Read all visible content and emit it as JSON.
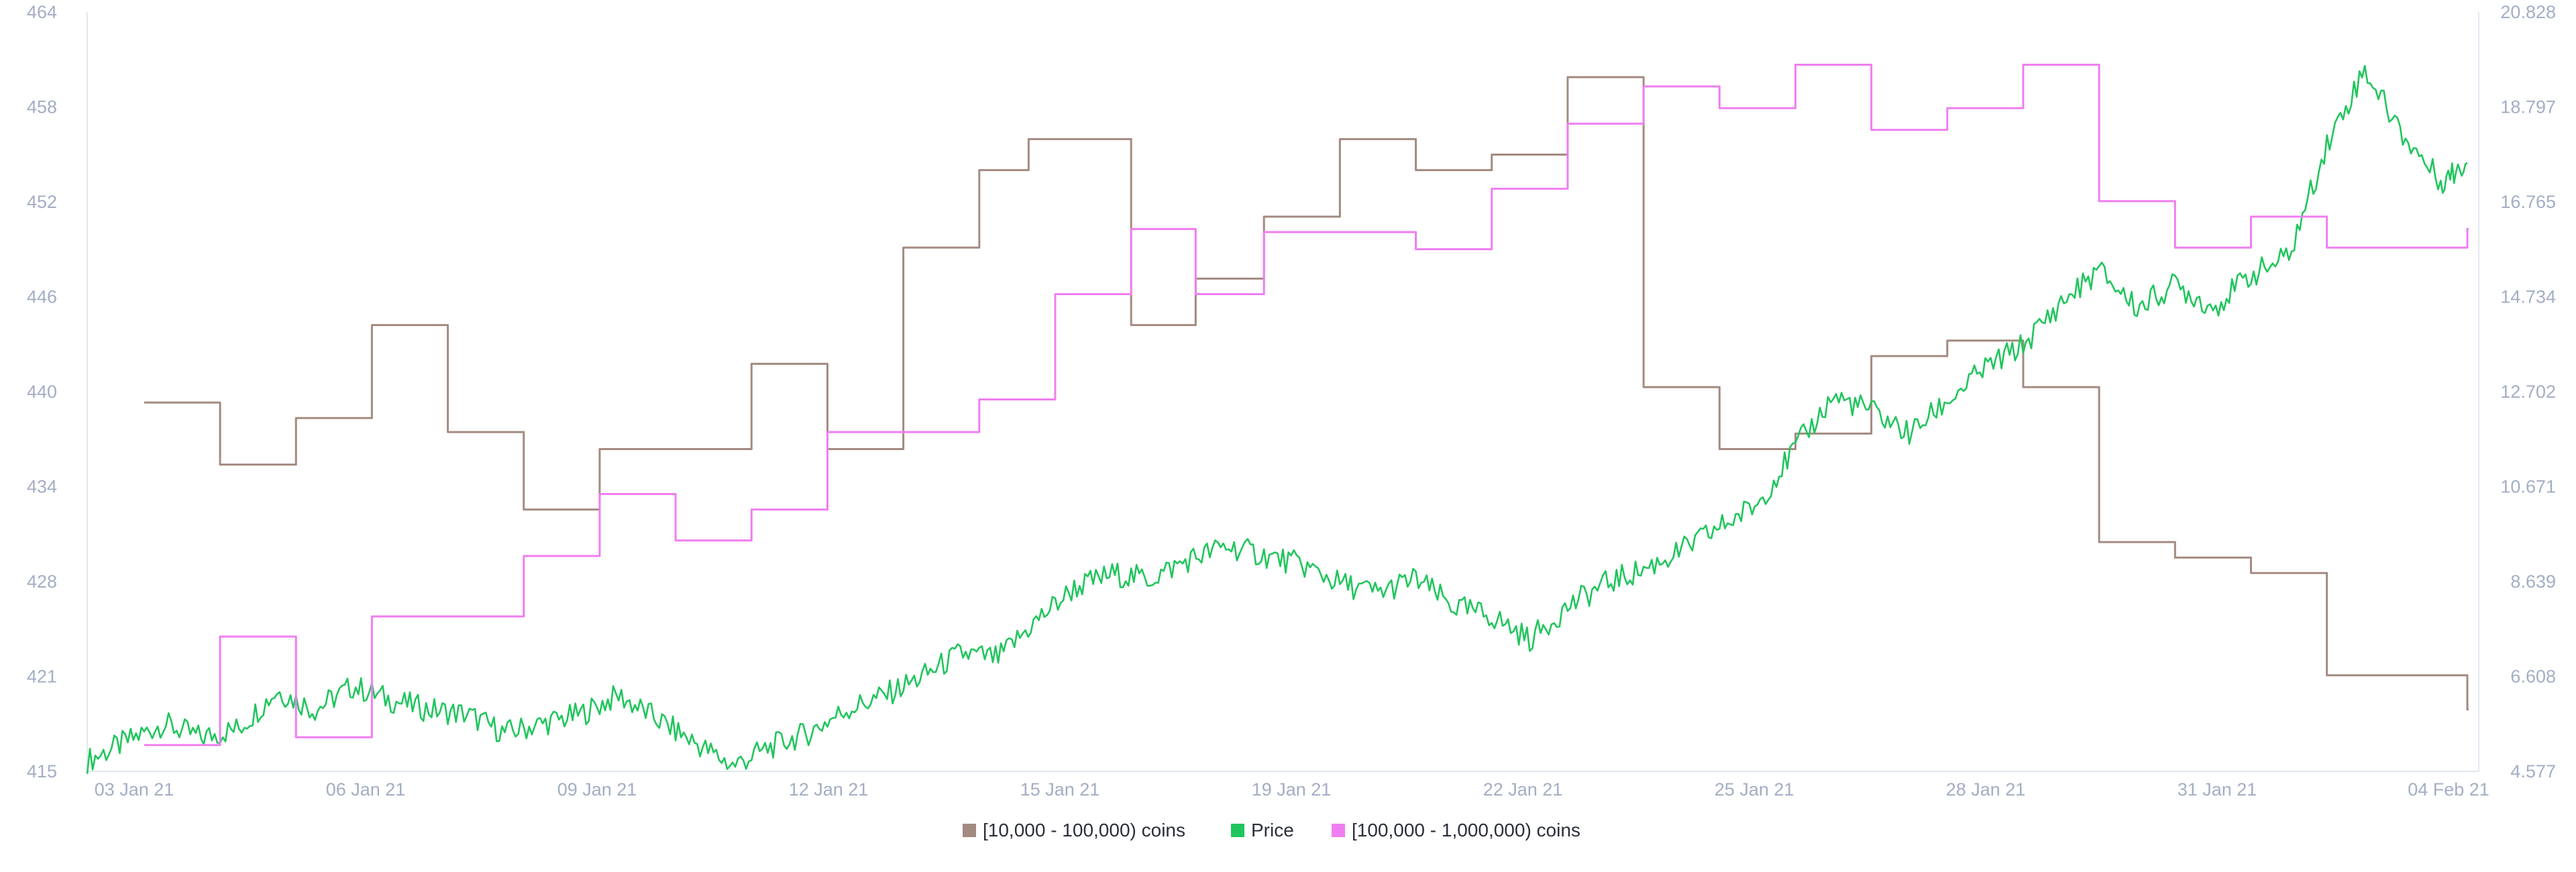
{
  "chart_data": {
    "type": "line",
    "title": "",
    "xlabel": "",
    "ylabel": "",
    "y2label": "",
    "x_tick_labels": [
      "03 Jan 21",
      "06 Jan 21",
      "09 Jan 21",
      "12 Jan 21",
      "15 Jan 21",
      "19 Jan 21",
      "22 Jan 21",
      "25 Jan 21",
      "28 Jan 21",
      "31 Jan 21",
      "04 Feb 21"
    ],
    "y_left_ticks": [
      "415",
      "421",
      "428",
      "434",
      "440",
      "446",
      "452",
      "458",
      "464"
    ],
    "y_right_ticks": [
      "4.577",
      "6.608",
      "8.639",
      "10.671",
      "12.702",
      "14.734",
      "16.765",
      "18.797",
      "20.828"
    ],
    "xlim": [
      0,
      31.5
    ],
    "y_left_lim": [
      415,
      464
    ],
    "y_right_lim": [
      4.577,
      20.828
    ],
    "grid": false,
    "legend_position": "bottom-center",
    "series": [
      {
        "name": "[10,000 - 100,000) coins",
        "axis": "left",
        "color": "#a38a80",
        "step": true,
        "x": [
          0.75,
          1.75,
          2.75,
          3.75,
          4.75,
          5.75,
          6.75,
          7.75,
          8.75,
          9.75,
          10.75,
          11.75,
          12.4,
          13.75,
          14.6,
          15.5,
          16.5,
          17.5,
          18.5,
          19.5,
          20.5,
          21.5,
          22.5,
          23.5,
          24.5,
          25.5,
          26.5,
          27.5,
          28.5,
          29.5,
          30.5,
          31.35
        ],
        "values": [
          438.8,
          434.8,
          437.8,
          443.8,
          436.9,
          431.9,
          435.8,
          435.8,
          441.3,
          435.8,
          448.8,
          453.8,
          455.8,
          443.8,
          446.8,
          450.8,
          455.8,
          453.8,
          454.8,
          459.8,
          439.8,
          435.8,
          436.8,
          441.8,
          442.8,
          439.8,
          429.8,
          428.8,
          427.8,
          421.2,
          421.2,
          419.0
        ]
      },
      {
        "name": "Price",
        "axis": "right",
        "color": "#21c55d",
        "step": false,
        "x": [
          0.0,
          0.5,
          1.0,
          1.5,
          2.0,
          2.5,
          3.0,
          3.5,
          4.0,
          4.5,
          5.0,
          5.5,
          6.0,
          6.5,
          7.0,
          7.5,
          8.0,
          8.5,
          9.0,
          9.5,
          10.0,
          10.5,
          11.0,
          11.5,
          12.0,
          12.5,
          13.0,
          13.5,
          14.0,
          14.5,
          15.0,
          15.5,
          16.0,
          16.5,
          17.0,
          17.5,
          18.0,
          18.5,
          19.0,
          19.5,
          20.0,
          20.5,
          21.0,
          21.5,
          22.0,
          22.5,
          23.0,
          23.5,
          24.0,
          24.5,
          25.0,
          25.5,
          26.0,
          26.5,
          27.0,
          27.5,
          28.0,
          28.5,
          29.0,
          29.5,
          30.0,
          30.5,
          31.0,
          31.35
        ],
        "values": [
          4.8,
          5.2,
          5.6,
          5.3,
          5.5,
          6.3,
          5.9,
          6.4,
          6.1,
          5.9,
          5.8,
          5.4,
          5.6,
          5.8,
          6.2,
          5.7,
          5.2,
          4.7,
          5.1,
          5.4,
          5.9,
          6.2,
          6.6,
          7.1,
          7.0,
          7.8,
          8.5,
          8.8,
          8.7,
          9.1,
          9.4,
          9.2,
          9.0,
          8.6,
          8.4,
          8.7,
          8.1,
          7.9,
          7.4,
          8.1,
          8.6,
          8.9,
          9.3,
          9.8,
          10.3,
          11.5,
          12.6,
          12.3,
          11.8,
          12.5,
          13.2,
          13.7,
          14.6,
          15.3,
          14.5,
          15.0,
          14.5,
          15.2,
          15.6,
          18.0,
          19.6,
          18.2,
          17.2,
          17.6
        ]
      },
      {
        "name": "[100,000  - 1,000,000) coins",
        "axis": "left",
        "color": "#f07ef0",
        "step": true,
        "x": [
          0.75,
          1.75,
          2.75,
          3.75,
          4.75,
          5.75,
          6.75,
          7.75,
          8.75,
          9.75,
          10.75,
          11.75,
          12.75,
          13.75,
          14.6,
          15.5,
          16.5,
          17.5,
          18.5,
          19.5,
          20.5,
          21.5,
          22.5,
          23.5,
          24.5,
          25.5,
          26.5,
          27.5,
          28.5,
          29.5,
          30.5,
          31.35
        ],
        "values": [
          416.7,
          423.7,
          417.2,
          425.0,
          425.0,
          428.9,
          432.9,
          429.9,
          431.9,
          436.9,
          436.9,
          439.0,
          445.8,
          450.0,
          445.8,
          449.8,
          449.8,
          448.7,
          452.6,
          456.8,
          459.2,
          457.8,
          460.6,
          456.4,
          457.8,
          460.6,
          451.8,
          448.8,
          450.8,
          448.8,
          448.8,
          450.0
        ]
      }
    ]
  }
}
